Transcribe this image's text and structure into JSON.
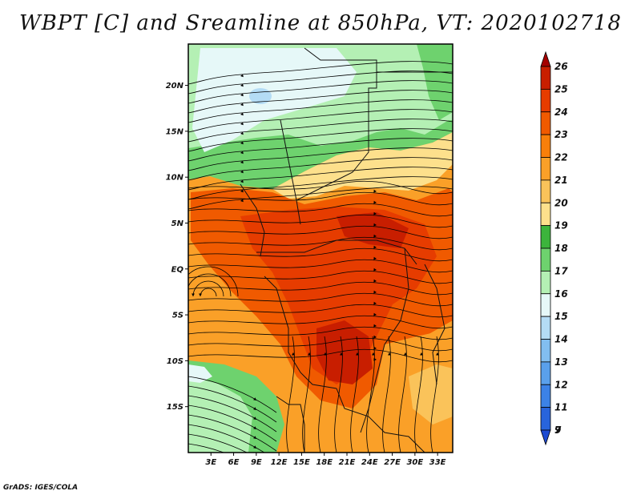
{
  "title": "WBPT [C] and Sreamline at 850hPa, VT: 2020102718",
  "credit": "GrADS: IGES/COLA",
  "map": {
    "lat_range": [
      -20,
      24.5
    ],
    "lon_range": [
      0,
      35
    ],
    "lat_ticks": [
      {
        "label": "20N",
        "value": 20
      },
      {
        "label": "15N",
        "value": 15
      },
      {
        "label": "10N",
        "value": 10
      },
      {
        "label": "5N",
        "value": 5
      },
      {
        "label": "EQ",
        "value": 0
      },
      {
        "label": "5S",
        "value": -5
      },
      {
        "label": "10S",
        "value": -10
      },
      {
        "label": "15S",
        "value": -15
      }
    ],
    "lon_ticks": [
      {
        "label": "3E",
        "value": 3
      },
      {
        "label": "6E",
        "value": 6
      },
      {
        "label": "9E",
        "value": 9
      },
      {
        "label": "12E",
        "value": 12
      },
      {
        "label": "15E",
        "value": 15
      },
      {
        "label": "18E",
        "value": 18
      },
      {
        "label": "21E",
        "value": 21
      },
      {
        "label": "24E",
        "value": 24
      },
      {
        "label": "27E",
        "value": 27
      },
      {
        "label": "30E",
        "value": 30
      },
      {
        "label": "33E",
        "value": 33
      }
    ]
  },
  "colorbar": {
    "levels": [
      {
        "label": "26",
        "color": "#a50000"
      },
      {
        "label": "25",
        "color": "#c81e00"
      },
      {
        "label": "24",
        "color": "#e63c00"
      },
      {
        "label": "23",
        "color": "#f05a00"
      },
      {
        "label": "22",
        "color": "#f87f0a"
      },
      {
        "label": "21",
        "color": "#faa028"
      },
      {
        "label": "20",
        "color": "#fac35a"
      },
      {
        "label": "19",
        "color": "#fde08c"
      },
      {
        "label": "18",
        "color": "#3cb43c"
      },
      {
        "label": "17",
        "color": "#6ed26e"
      },
      {
        "label": "16",
        "color": "#b4f0b4"
      },
      {
        "label": "15",
        "color": "#e6f8f8"
      },
      {
        "label": "14",
        "color": "#b4dcf5"
      },
      {
        "label": "13",
        "color": "#82bef0"
      },
      {
        "label": "12",
        "color": "#5aa0eb"
      },
      {
        "label": "11",
        "color": "#3c82e6"
      },
      {
        "label": "9",
        "color": "#2864dc"
      },
      {
        "label": "7",
        "color": "#1e4bd2"
      }
    ]
  }
}
